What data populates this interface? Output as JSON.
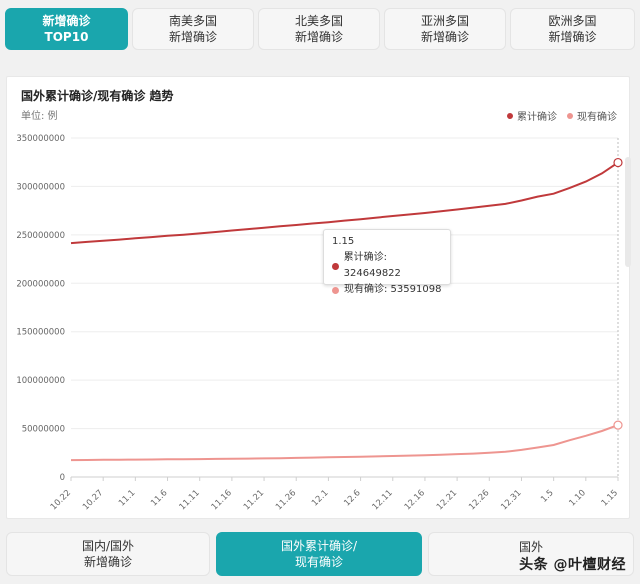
{
  "top_tabs": [
    {
      "line1": "新增确诊",
      "line2": "TOP10",
      "active": true
    },
    {
      "line1": "南美多国",
      "line2": "新增确诊",
      "active": false
    },
    {
      "line1": "北美多国",
      "line2": "新增确诊",
      "active": false
    },
    {
      "line1": "亚洲多国",
      "line2": "新增确诊",
      "active": false
    },
    {
      "line1": "欧洲多国",
      "line2": "新增确诊",
      "active": false
    }
  ],
  "bottom_tabs": [
    {
      "line1": "国内/国外",
      "line2": "新增确诊",
      "active": false
    },
    {
      "line1": "国外累计确诊/",
      "line2": "现有确诊",
      "active": true
    },
    {
      "line1": "国外",
      "line2": "",
      "active": false
    }
  ],
  "watermark": "头条 @叶檀财经",
  "colors": {
    "accent": "#1aa6ad",
    "cumulative": "#c0393b",
    "current": "#ee9590"
  },
  "tooltip": {
    "date": "1.15",
    "rows": [
      {
        "label": "累计确诊: 324649822",
        "color": "#c0393b"
      },
      {
        "label": "现有确诊: 53591098",
        "color": "#ee9590"
      }
    ]
  },
  "chart_data": {
    "type": "line",
    "title": "国外累计确诊/现有确诊 趋势",
    "unit": "单位: 例",
    "legend_position": "top-right",
    "grid": true,
    "ylim": [
      0,
      350000000
    ],
    "y_ticks": [
      0,
      50000000,
      100000000,
      150000000,
      200000000,
      250000000,
      300000000,
      350000000
    ],
    "x": [
      "10.22",
      "10.24",
      "10.27",
      "10.29",
      "11.1",
      "11.3",
      "11.6",
      "11.8",
      "11.11",
      "11.13",
      "11.16",
      "11.18",
      "11.21",
      "11.23",
      "11.26",
      "11.28",
      "12.1",
      "12.3",
      "12.6",
      "12.8",
      "12.11",
      "12.13",
      "12.16",
      "12.18",
      "12.21",
      "12.23",
      "12.26",
      "12.28",
      "12.31",
      "1.2",
      "1.5",
      "1.7",
      "1.10",
      "1.12",
      "1.15"
    ],
    "x_tick_labels": [
      "10.22",
      "10.27",
      "11.1",
      "11.6",
      "11.11",
      "11.16",
      "11.21",
      "11.26",
      "12.1",
      "12.6",
      "12.11",
      "12.16",
      "12.21",
      "12.26",
      "12.31",
      "1.5",
      "1.10",
      "1.15"
    ],
    "series": [
      {
        "name": "累计确诊",
        "color": "#c0393b",
        "values": [
          241500000,
          242700000,
          244000000,
          245100000,
          246400000,
          247700000,
          249000000,
          250200000,
          251500000,
          253000000,
          254500000,
          255900000,
          257300000,
          258800000,
          260200000,
          261700000,
          263100000,
          264700000,
          266200000,
          267800000,
          269500000,
          271000000,
          272600000,
          274400000,
          276200000,
          278100000,
          280000000,
          282000000,
          285500000,
          289500000,
          292500000,
          298500000,
          305000000,
          313500000,
          324649822
        ]
      },
      {
        "name": "现有确诊",
        "color": "#ee9590",
        "values": [
          17500000,
          17600000,
          17800000,
          17900000,
          18000000,
          18100000,
          18300000,
          18400000,
          18500000,
          18700000,
          18800000,
          19000000,
          19200000,
          19400000,
          19700000,
          20000000,
          20300000,
          20600000,
          21000000,
          21300000,
          21700000,
          22100000,
          22500000,
          23000000,
          23600000,
          24200000,
          25000000,
          26000000,
          28000000,
          30500000,
          33000000,
          38000000,
          42500000,
          47500000,
          53591098
        ]
      }
    ]
  }
}
